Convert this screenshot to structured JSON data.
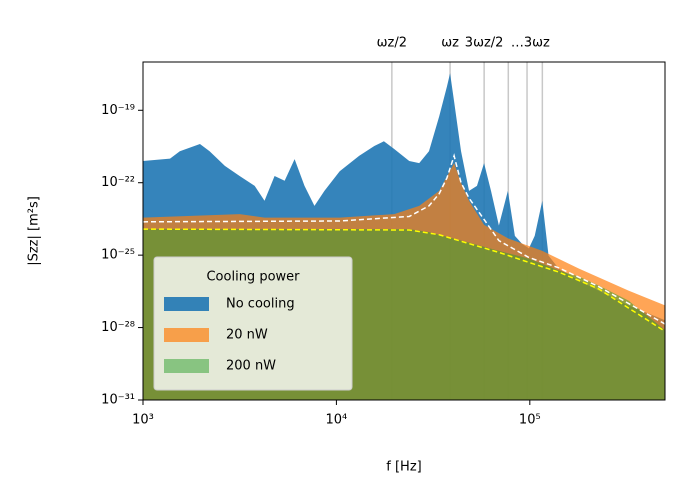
{
  "chart_data": {
    "type": "area",
    "xlabel": "f [Hz]",
    "ylabel": "|Szz| [m²s]",
    "xscale": "log",
    "yscale": "log",
    "xlim": [
      1000,
      500000
    ],
    "ylim": [
      1e-31,
      1e-17
    ],
    "xticks": [
      {
        "value": 1000,
        "label": "10³"
      },
      {
        "value": 10000,
        "label": "10⁴"
      },
      {
        "value": 100000,
        "label": "10⁵"
      }
    ],
    "yticks": [
      {
        "value": 1e-31,
        "label": "10⁻³¹"
      },
      {
        "value": 1e-28,
        "label": "10⁻²⁸"
      },
      {
        "value": 1e-25,
        "label": "10⁻²⁵"
      },
      {
        "value": 1e-22,
        "label": "10⁻²²"
      },
      {
        "value": 1e-19,
        "label": "10⁻¹⁹"
      }
    ],
    "legend_title": "Cooling power",
    "legend_position": "lower left",
    "harmonics": [
      19350,
      38700,
      58050,
      77400,
      96750,
      116100
    ],
    "annotations": [
      {
        "text": "ωz/2",
        "x": 19350
      },
      {
        "text": "ωz",
        "x": 38700
      },
      {
        "text": "3ωz/2",
        "x": 58050
      },
      {
        "text": "…3ωz",
        "x": 116100
      }
    ],
    "series": [
      {
        "name": "No cooling",
        "color": "#1f77b4",
        "opacity": 0.9,
        "x": [
          1000,
          1380,
          1550,
          1970,
          2210,
          2650,
          3160,
          3780,
          4250,
          4790,
          5400,
          6080,
          6840,
          7700,
          8670,
          10400,
          13100,
          15700,
          17600,
          19900,
          23800,
          26800,
          30100,
          34000,
          37300,
          38700,
          40600,
          44100,
          48500,
          53300,
          58000,
          63000,
          69200,
          77000,
          83700,
          91000,
          98900,
          106000,
          116000,
          125000,
          141000,
          179000,
          227000,
          324000,
          500000
        ],
        "values": [
          7.9e-22,
          1e-21,
          2e-21,
          4e-21,
          2e-21,
          5e-22,
          1.9e-22,
          7.4e-23,
          1.8e-23,
          1.9e-22,
          1.2e-22,
          9.5e-22,
          7.4e-23,
          1.1e-23,
          4.6e-23,
          3e-22,
          1.3e-21,
          3.3e-21,
          5.2e-21,
          2.5e-21,
          7.9e-22,
          6.5e-22,
          2e-21,
          5.6e-20,
          9.8e-19,
          3.4e-18,
          2.3e-19,
          2e-21,
          4.6e-23,
          7.4e-23,
          6.5e-22,
          4.6e-23,
          1.7e-24,
          4.6e-23,
          6.3e-25,
          3e-25,
          1.9e-25,
          6.3e-25,
          1.8e-23,
          9.5e-26,
          2.8e-26,
          8.9e-27,
          3.4e-27,
          8.3e-28,
          2e-28
        ]
      },
      {
        "name": "20 nW",
        "color": "#ff7f0e",
        "opacity": 0.7,
        "x": [
          1000,
          3160,
          4250,
          10400,
          19900,
          26800,
          34000,
          40600,
          44100,
          48500,
          58000,
          77000,
          116000,
          179000,
          324000,
          500000
        ],
        "values": [
          3.6e-24,
          5e-24,
          3.6e-24,
          3.6e-24,
          5e-24,
          1.1e-23,
          4.6e-23,
          6.5e-22,
          1e-22,
          1.8e-23,
          1.8e-24,
          5e-25,
          1.5e-25,
          2.8e-26,
          3.4e-27,
          8.3e-28
        ]
      },
      {
        "name": "200 nW",
        "color": "#2ca02c",
        "opacity": 0.5,
        "x": [
          1000,
          10400,
          23800,
          30100,
          40600,
          48500,
          69200,
          98900,
          141000,
          179000,
          227000,
          324000,
          500000
        ],
        "values": [
          1.2e-24,
          1.2e-24,
          1.2e-24,
          9e-25,
          4.8e-25,
          3.3e-25,
          1.5e-25,
          7.2e-26,
          2.3e-26,
          1.3e-26,
          5.5e-27,
          1.3e-27,
          7.8e-29
        ]
      }
    ],
    "fit_lines": [
      {
        "color": "#ffffff",
        "x": [
          1000,
          10400,
          23800,
          30100,
          34000,
          37300,
          40600,
          44100,
          48500,
          58000,
          69200,
          98900,
          141000,
          227000,
          500000
        ],
        "values": [
          2.4e-24,
          2.6e-24,
          4e-24,
          1.1e-23,
          3.5e-23,
          1.6e-22,
          1.3e-21,
          1e-22,
          2.3e-23,
          3e-24,
          4e-25,
          8e-26,
          3e-26,
          5e-27,
          1.4e-28
        ]
      },
      {
        "color": "#ffff00",
        "x": [
          1000,
          23800,
          34000,
          48500,
          69200,
          98900,
          141000,
          227000,
          500000
        ],
        "values": [
          1.2e-24,
          1.1e-24,
          7e-25,
          3e-25,
          1.3e-25,
          5e-26,
          2e-26,
          4e-27,
          7e-29
        ]
      }
    ]
  }
}
